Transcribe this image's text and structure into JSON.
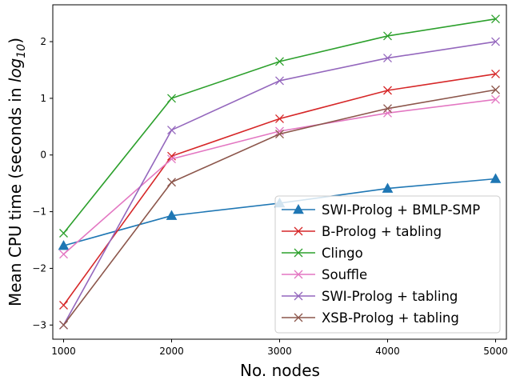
{
  "chart_data": {
    "type": "line",
    "title": "",
    "xlabel": "No. nodes",
    "ylabel_prefix": "Mean CPU time (seconds in ",
    "ylabel_log": "log",
    "ylabel_sub": "10",
    "ylabel_suffix": ")",
    "x": [
      1000,
      2000,
      3000,
      4000,
      5000
    ],
    "xlim": [
      900,
      5100
    ],
    "ylim": [
      -3.25,
      2.65
    ],
    "xticks": [
      1000,
      2000,
      3000,
      4000,
      5000
    ],
    "yticks": [
      -3,
      -2,
      -1,
      0,
      1,
      2
    ],
    "legend_position": "lower-right",
    "grid": false,
    "series": [
      {
        "name": "SWI-Prolog + BMLP-SMP",
        "color": "#1f77b4",
        "marker": "triangle",
        "values": [
          -1.6,
          -1.07,
          -0.85,
          -0.59,
          -0.42
        ]
      },
      {
        "name": "B-Prolog + tabling",
        "color": "#d62728",
        "marker": "x",
        "values": [
          -2.65,
          -0.02,
          0.64,
          1.14,
          1.43
        ]
      },
      {
        "name": "Clingo",
        "color": "#2ca02c",
        "marker": "x",
        "values": [
          -1.38,
          1.0,
          1.65,
          2.1,
          2.4
        ]
      },
      {
        "name": "Souffle",
        "color": "#e377c2",
        "marker": "x",
        "values": [
          -1.75,
          -0.07,
          0.42,
          0.74,
          0.98
        ]
      },
      {
        "name": "SWI-Prolog + tabling",
        "color": "#9467bd",
        "marker": "x",
        "values": [
          -3.0,
          0.44,
          1.31,
          1.71,
          2.0
        ]
      },
      {
        "name": "XSB-Prolog + tabling",
        "color": "#8c564b",
        "marker": "x",
        "values": [
          -3.0,
          -0.48,
          0.37,
          0.82,
          1.15
        ]
      }
    ]
  }
}
